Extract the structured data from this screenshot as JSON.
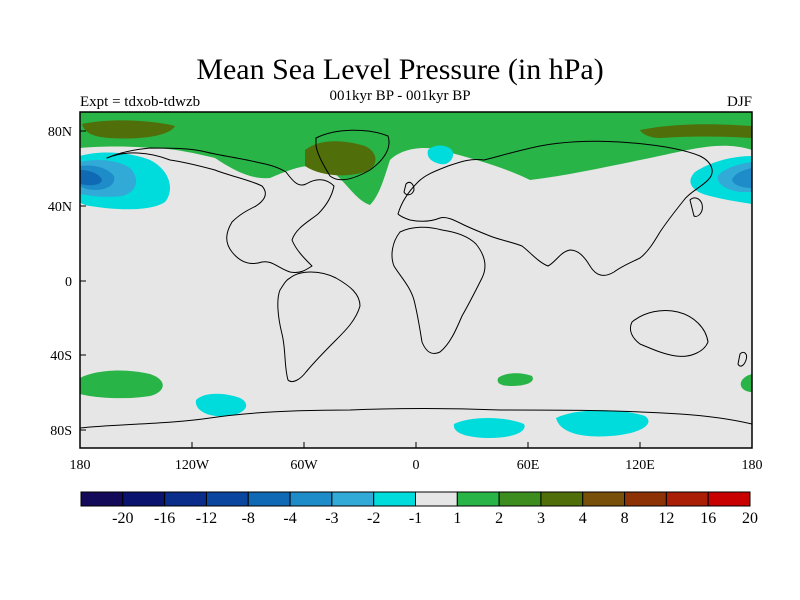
{
  "title": "Mean Sea Level Pressure (in hPa)",
  "subtitle": "001kyr BP - 001kyr BP",
  "left_label": "Expt = tdxob-tdwzb",
  "season": "DJF",
  "map": {
    "x_ticks": [
      "180",
      "120W",
      "60W",
      "0",
      "60E",
      "120E",
      "180"
    ],
    "y_ticks": [
      "80N",
      "40N",
      "0",
      "40S",
      "80S"
    ],
    "background": "#e6e6e6"
  },
  "colorbar": {
    "colors": [
      "#140a5a",
      "#0a146e",
      "#0a2d8c",
      "#0a46a0",
      "#0f69b4",
      "#1e8cc8",
      "#32aad7",
      "#00dcdc",
      "#e6e6e6",
      "#28b446",
      "#3c8c1e",
      "#506e0a",
      "#78500a",
      "#8c3205",
      "#aa1e05",
      "#c80000"
    ],
    "labels": [
      "-20",
      "-16",
      "-12",
      "-8",
      "-4",
      "-3",
      "-2",
      "-1",
      "1",
      "2",
      "3",
      "4",
      "8",
      "12",
      "16",
      "20"
    ]
  }
}
